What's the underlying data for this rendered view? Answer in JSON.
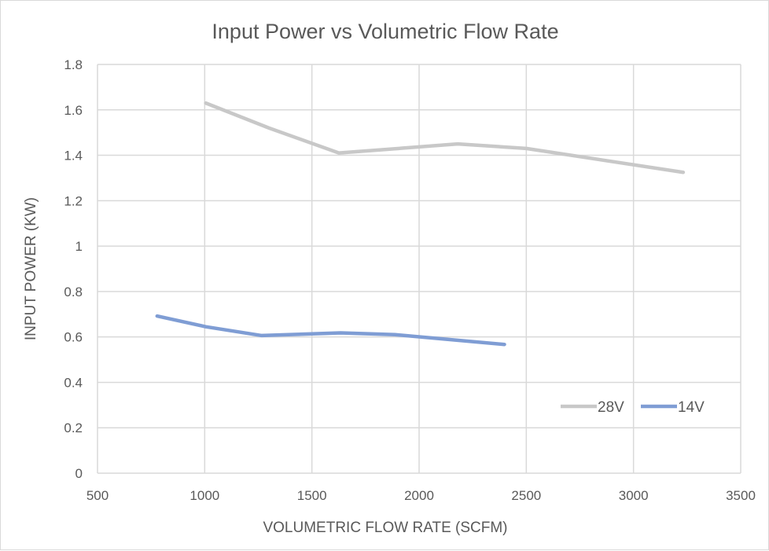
{
  "chart_data": {
    "type": "line",
    "title": "Input Power vs Volumetric Flow Rate",
    "xlabel": "VOLUMETRIC FLOW RATE (SCFM)",
    "ylabel": "INPUT POWER (KW)",
    "xlim": [
      500,
      3500
    ],
    "ylim": [
      0,
      1.8
    ],
    "xticks": [
      500,
      1000,
      1500,
      2000,
      2500,
      3000,
      3500
    ],
    "yticks": [
      0,
      0.2,
      0.4,
      0.6,
      0.8,
      1,
      1.2,
      1.4,
      1.6,
      1.8
    ],
    "xtick_labels": [
      "500",
      "1000",
      "1500",
      "2000",
      "2500",
      "3000",
      "3500"
    ],
    "ytick_labels": [
      "0",
      "0.2",
      "0.4",
      "0.6",
      "0.8",
      "1",
      "1.2",
      "1.4",
      "1.6",
      "1.8"
    ],
    "grid": true,
    "legend_position": "bottom-right",
    "series": [
      {
        "name": "28V",
        "color": "#c8c8c8",
        "x": [
          1005,
          1300,
          1626,
          2180,
          2500,
          3232
        ],
        "y": [
          1.63,
          1.52,
          1.41,
          1.45,
          1.43,
          1.325
        ]
      },
      {
        "name": "14V",
        "color": "#7f9dd4",
        "x": [
          778,
          1005,
          1266,
          1634,
          1888,
          2398
        ],
        "y": [
          0.692,
          0.645,
          0.606,
          0.618,
          0.61,
          0.567
        ]
      }
    ]
  }
}
